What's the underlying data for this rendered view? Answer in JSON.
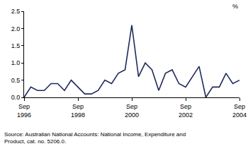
{
  "chart_data": {
    "type": "line",
    "ylabel": "%",
    "categories": [
      "Sep 1996",
      null,
      null,
      null,
      null,
      null,
      null,
      null,
      "Sep 1998",
      null,
      null,
      null,
      null,
      null,
      null,
      null,
      "Sep 2000",
      null,
      null,
      null,
      null,
      null,
      null,
      null,
      "Sep 2002",
      null,
      null,
      null,
      null,
      null,
      null,
      null,
      "Sep 2004"
    ],
    "values": [
      0.0,
      0.3,
      0.2,
      0.2,
      0.4,
      0.4,
      0.2,
      0.5,
      0.3,
      0.1,
      0.1,
      0.2,
      0.5,
      0.4,
      0.7,
      0.8,
      2.1,
      0.6,
      1.0,
      0.8,
      0.2,
      0.7,
      0.8,
      0.4,
      0.3,
      0.6,
      0.9,
      0.0,
      0.3,
      0.3,
      0.7,
      0.4,
      0.5
    ],
    "color": "#1f2a5c",
    "ylim": [
      0,
      2.5
    ],
    "yticks": [
      {
        "value": 0,
        "label": "0.0"
      },
      0.5,
      {
        "value": 1,
        "label": "1.0"
      },
      1.5,
      {
        "value": 2,
        "label": "2.0"
      },
      2.5
    ],
    "grid": false,
    "annotations": [
      "Source: Australian National Accounts: National Income, Expenditure and",
      "Product, cat. no. 5206.0."
    ]
  }
}
